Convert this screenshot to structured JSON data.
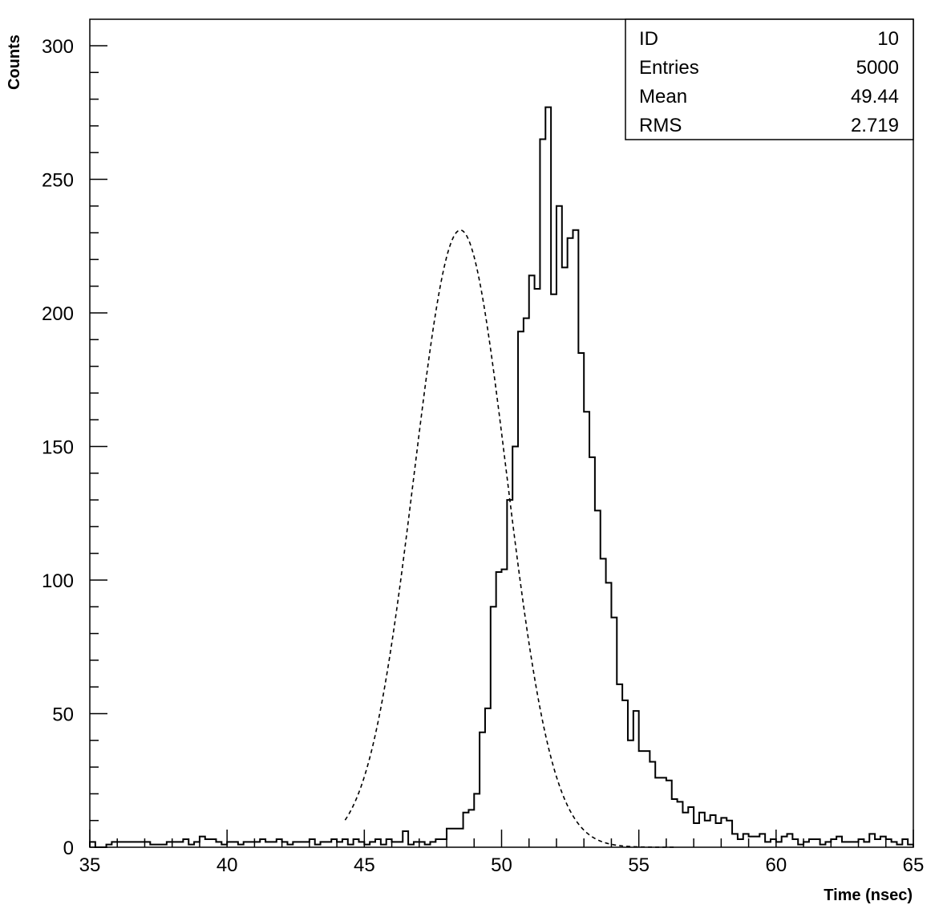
{
  "chart_data": {
    "type": "histogram",
    "xlabel": "Time (nsec)",
    "ylabel": "Counts",
    "xlim": [
      35,
      65
    ],
    "ylim": [
      0,
      300
    ],
    "bin_width": 0.2,
    "x_ticks": [
      35,
      40,
      45,
      50,
      55,
      60,
      65
    ],
    "y_ticks": [
      0,
      50,
      100,
      150,
      200,
      250,
      300
    ],
    "bin_edges_start": 35,
    "counts": [
      2,
      0,
      0,
      1,
      2,
      2,
      2,
      2,
      2,
      2,
      2,
      1,
      1,
      1,
      2,
      2,
      2,
      3,
      1,
      2,
      4,
      3,
      3,
      2,
      1,
      2,
      2,
      1,
      2,
      2,
      2,
      3,
      2,
      2,
      3,
      2,
      1,
      2,
      2,
      2,
      3,
      1,
      2,
      2,
      3,
      2,
      3,
      1,
      3,
      2,
      1,
      2,
      3,
      1,
      3,
      2,
      2,
      6,
      1,
      2,
      2,
      1,
      2,
      3,
      3,
      7,
      7,
      7,
      13,
      14,
      20,
      43,
      52,
      90,
      103,
      104,
      130,
      150,
      193,
      198,
      214,
      209,
      265,
      277,
      207,
      240,
      217,
      228,
      231,
      185,
      163,
      146,
      126,
      108,
      99,
      86,
      61,
      55,
      40,
      51,
      36,
      36,
      32,
      26,
      26,
      25,
      18,
      17,
      13,
      15,
      9,
      13,
      10,
      12,
      9,
      11,
      10,
      5,
      3,
      5,
      4,
      4,
      5,
      2,
      3,
      2,
      4,
      5,
      3,
      1,
      2,
      3,
      3,
      1,
      2,
      3,
      4,
      2,
      2,
      2,
      3,
      2,
      5,
      3,
      4,
      3,
      2,
      1,
      3,
      1
    ],
    "fit": {
      "type": "gaussian",
      "style": "dashed",
      "mean": 48.5,
      "sigma": 1.68,
      "peak": 231
    },
    "stats": [
      {
        "label": "ID",
        "value": "10"
      },
      {
        "label": "Entries",
        "value": "5000"
      },
      {
        "label": "Mean",
        "value": "49.44"
      },
      {
        "label": "RMS",
        "value": "2.719"
      }
    ],
    "grid": false,
    "legend": "top-right stats box"
  }
}
